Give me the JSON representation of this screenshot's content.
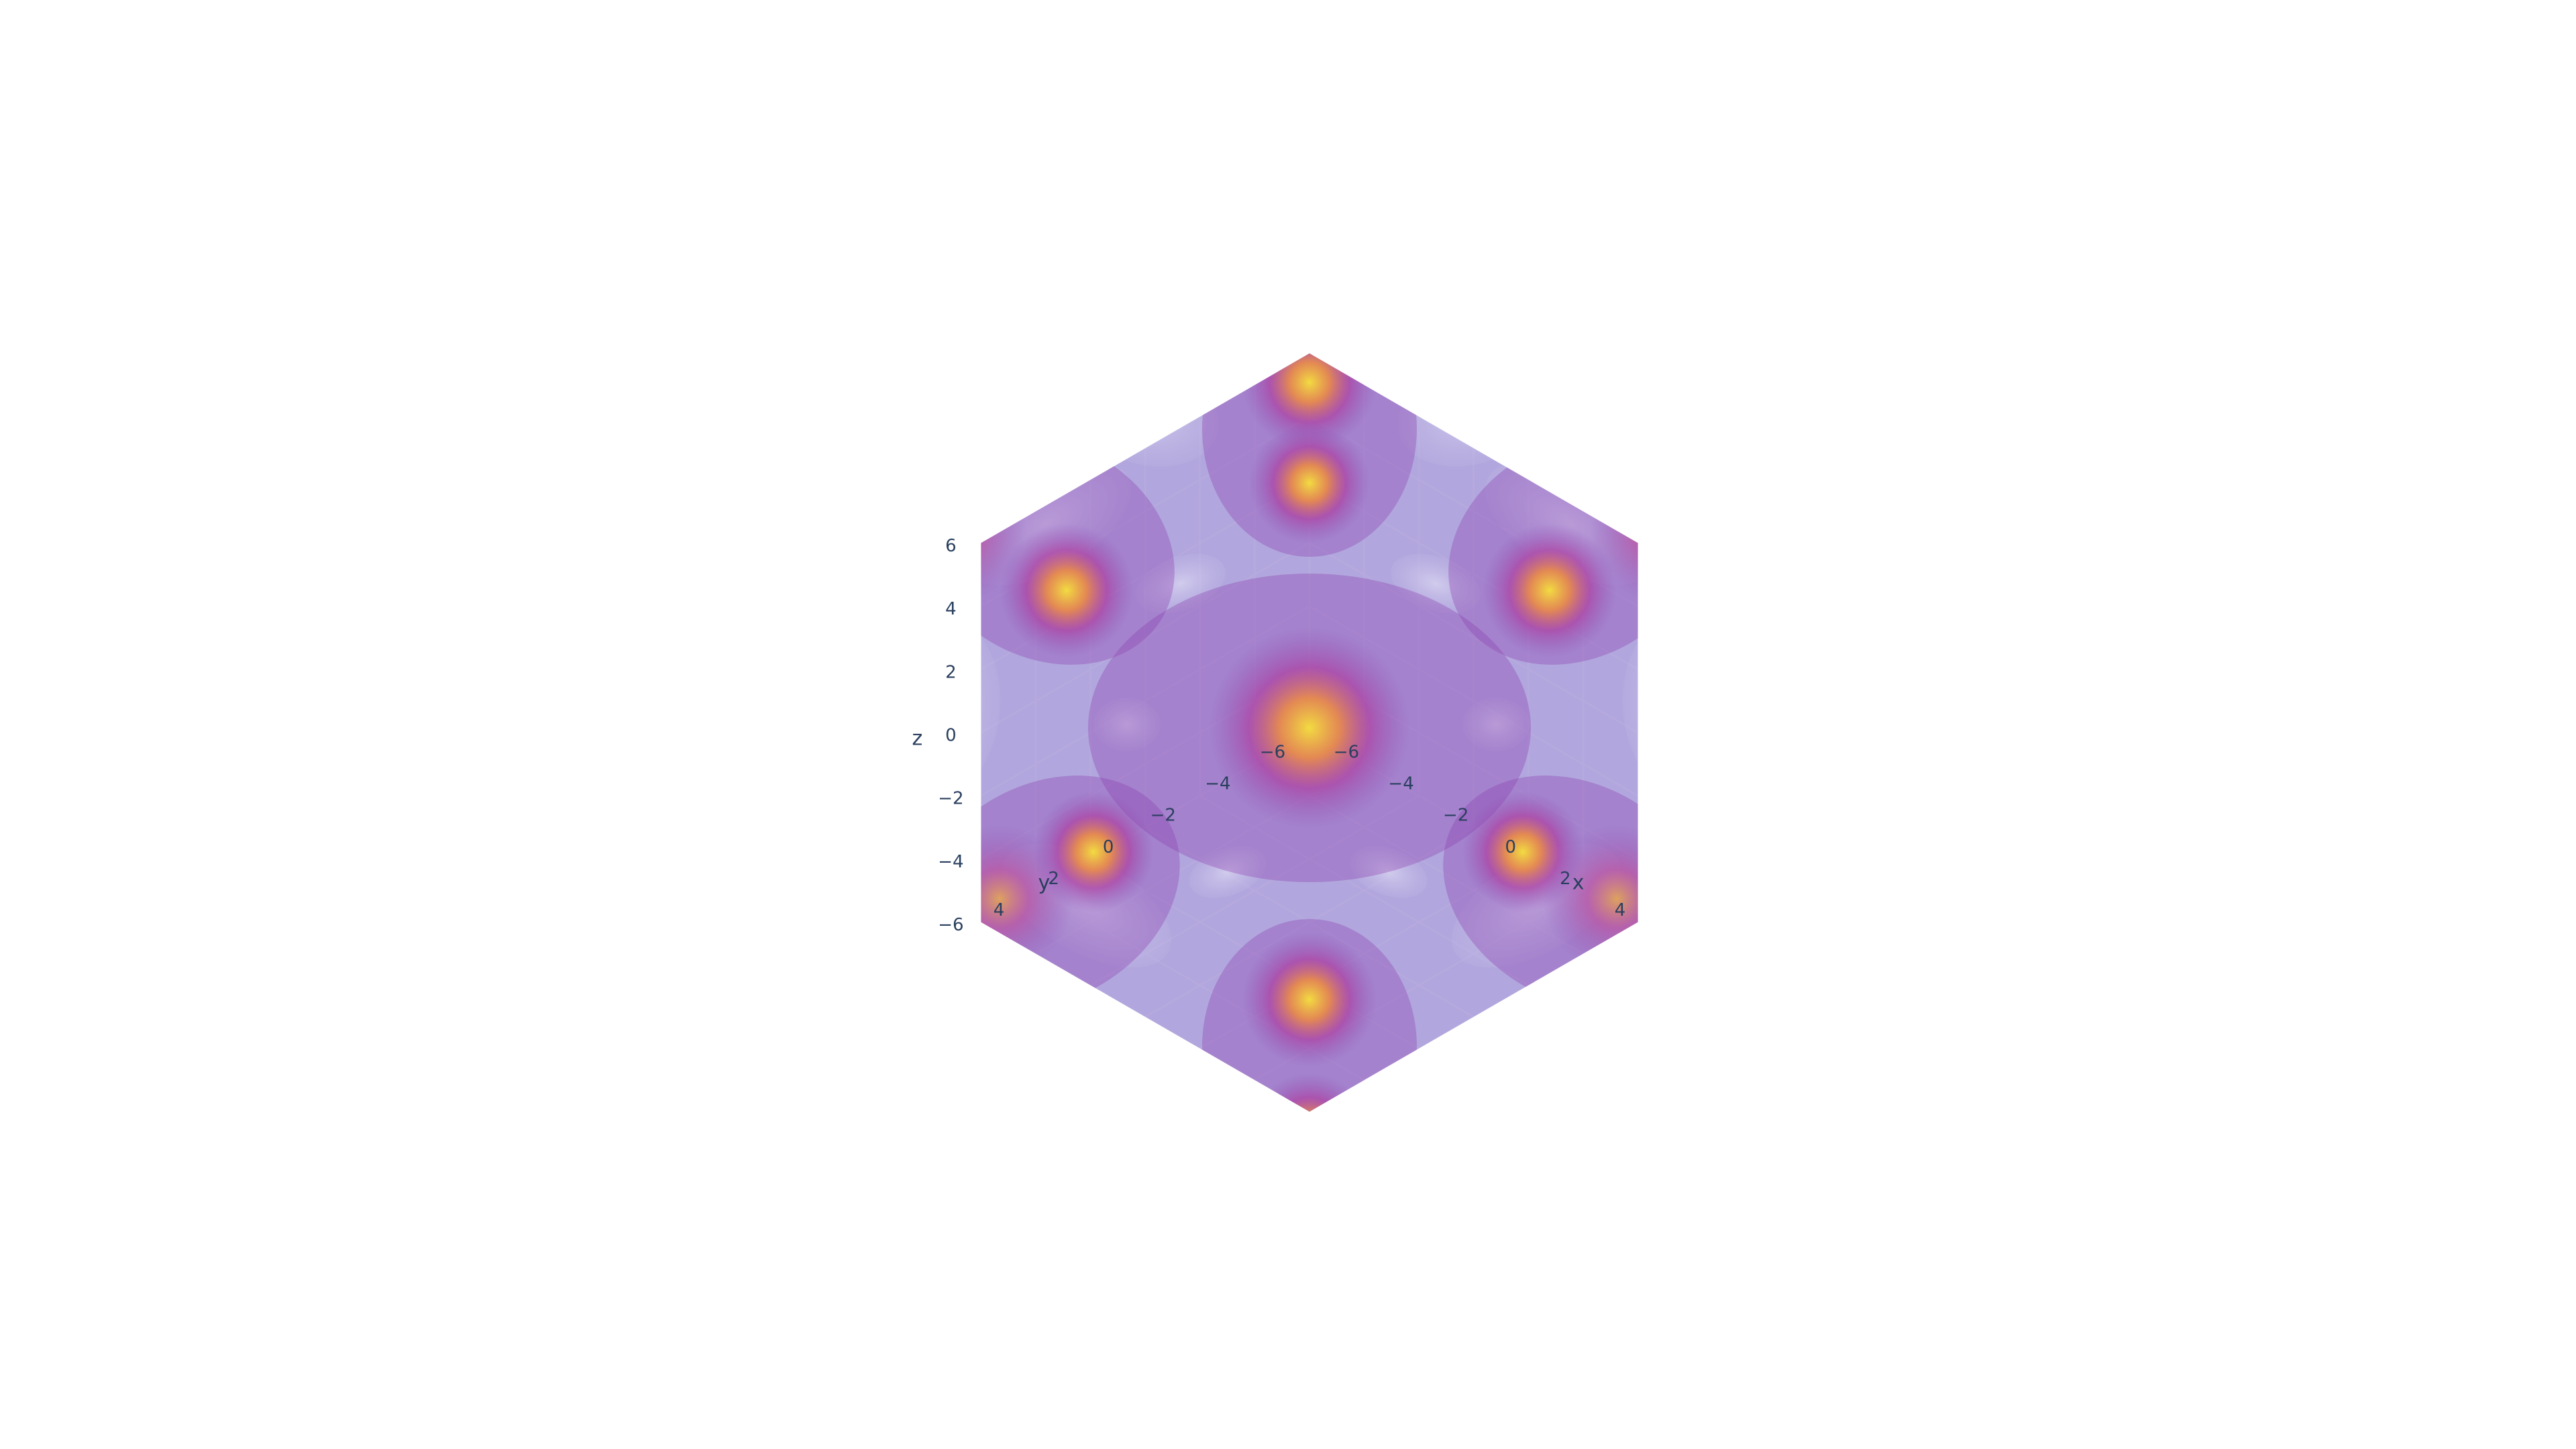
{
  "chart_data": {
    "type": "volume",
    "title": "",
    "scene": {
      "camera": "isometric view from the (-,-,+) octant, z up",
      "background_color": "#e5ecf6",
      "grid": true
    },
    "axes": {
      "x": {
        "label": "x",
        "range": [
          -6,
          6
        ],
        "ticks": [
          "−6",
          "−4",
          "−2",
          "0",
          "2",
          "4"
        ]
      },
      "y": {
        "label": "y",
        "range": [
          -6,
          6
        ],
        "ticks": [
          "−6",
          "−4",
          "−2",
          "0",
          "2",
          "4"
        ]
      },
      "z": {
        "label": "z",
        "range": [
          -6,
          6
        ],
        "ticks": [
          "−6",
          "−4",
          "−2",
          "0",
          "2",
          "4",
          "6"
        ]
      }
    },
    "value_field": {
      "description": "scalar field with hexagonal symmetry, rendered as translucent iso-surfaces",
      "low_color": "#7b6cc2",
      "mid_color": "#9c179e",
      "high_color": "#fdca26",
      "peak_color": "#f0f921",
      "opacity": 0.15,
      "surface_count": 17
    }
  }
}
